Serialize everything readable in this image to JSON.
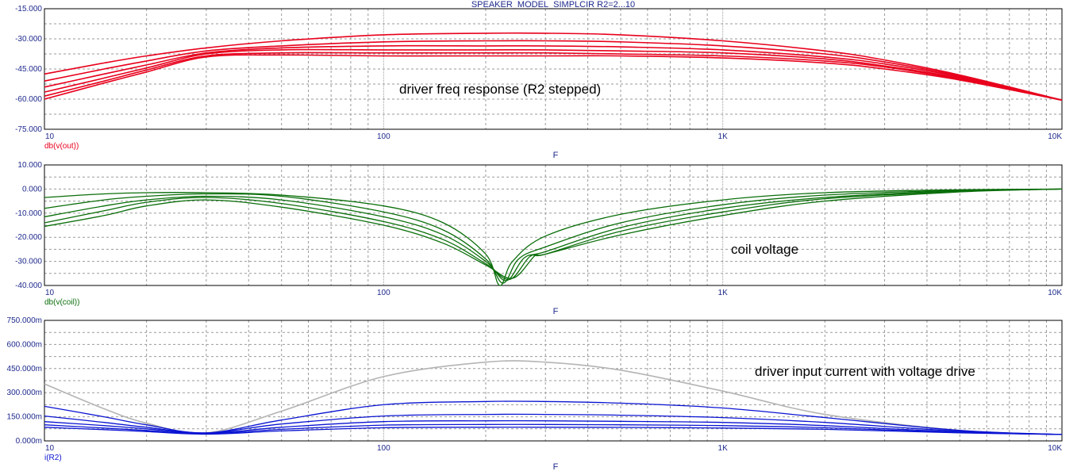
{
  "title": "SPEAKER_MODEL_SIMPLCIR R2=2...10",
  "colors": {
    "frame": "#000000",
    "grid": "#9a9a9a",
    "tick_text": "#1e2a8c",
    "red": "#e8001c",
    "green": "#0a6e0a",
    "blue": "#0a14d2",
    "gray": "#b4b4b4"
  },
  "chart_data": [
    {
      "type": "line",
      "xscale": "log",
      "xlim": [
        10,
        10000
      ],
      "ylim": [
        -75,
        -15
      ],
      "xlabel": "F",
      "xtick_labels": [
        "10",
        "100",
        "1K",
        "10K"
      ],
      "ytick_labels": [
        "-15.000",
        "-30.000",
        "-45.000",
        "-60.000",
        "-75.000"
      ],
      "trace_label": "db(v(out))",
      "annotation": "driver freq response (R2 stepped)",
      "series_color": "red",
      "series": [
        {
          "x": [
            10,
            15,
            20,
            30,
            50,
            100,
            200,
            300,
            500,
            1000,
            2000,
            3000,
            5000,
            10000
          ],
          "y": [
            -47.5,
            -42,
            -38.5,
            -34.5,
            -31,
            -28,
            -27.2,
            -27.2,
            -28,
            -31,
            -36,
            -40.5,
            -48,
            -60.5
          ]
        },
        {
          "x": [
            10,
            15,
            20,
            30,
            50,
            100,
            200,
            300,
            500,
            1000,
            2000,
            3000,
            5000,
            10000
          ],
          "y": [
            -51,
            -45,
            -41,
            -36,
            -33.5,
            -31.5,
            -31,
            -31,
            -31.5,
            -33.5,
            -37.5,
            -41.5,
            -48.5,
            -60.5
          ]
        },
        {
          "x": [
            10,
            15,
            20,
            30,
            50,
            100,
            200,
            300,
            500,
            1000,
            2000,
            3000,
            5000,
            10000
          ],
          "y": [
            -54,
            -47.5,
            -43,
            -37,
            -34.5,
            -33.5,
            -33.5,
            -33.5,
            -34,
            -35.5,
            -39,
            -42.5,
            -49,
            -60.5
          ]
        },
        {
          "x": [
            10,
            15,
            20,
            30,
            50,
            100,
            200,
            300,
            500,
            1000,
            2000,
            3000,
            5000,
            10000
          ],
          "y": [
            -56.5,
            -49.5,
            -44.5,
            -37.5,
            -35.5,
            -35.5,
            -35.5,
            -35.5,
            -36,
            -37,
            -40,
            -43.5,
            -49.5,
            -60.5
          ]
        },
        {
          "x": [
            10,
            15,
            20,
            30,
            50,
            100,
            200,
            300,
            500,
            1000,
            2000,
            3000,
            5000,
            10000
          ],
          "y": [
            -58.5,
            -51,
            -45.5,
            -38.5,
            -37,
            -37,
            -37,
            -37,
            -37.5,
            -38.5,
            -41,
            -44,
            -50,
            -60.5
          ]
        },
        {
          "x": [
            10,
            15,
            20,
            30,
            50,
            100,
            200,
            300,
            500,
            1000,
            2000,
            3000,
            5000,
            10000
          ],
          "y": [
            -60,
            -52,
            -46.5,
            -39,
            -38,
            -38.5,
            -38.5,
            -38.5,
            -38.5,
            -39.5,
            -42,
            -45,
            -50.5,
            -60.5
          ]
        }
      ]
    },
    {
      "type": "line",
      "xscale": "log",
      "xlim": [
        10,
        10000
      ],
      "ylim": [
        -40,
        10
      ],
      "xlabel": "F",
      "xtick_labels": [
        "10",
        "100",
        "1K",
        "10K"
      ],
      "ytick_labels": [
        "10.000",
        "0.000",
        "-10.000",
        "-20.000",
        "-30.000",
        "-40.000"
      ],
      "trace_label": "db(v(coil))",
      "annotation": "coil voltage",
      "series_color": "green",
      "series": [
        {
          "x": [
            10,
            15,
            20,
            30,
            50,
            100,
            150,
            200,
            220,
            240,
            300,
            500,
            1000,
            2000,
            5000,
            10000
          ],
          "y": [
            -3.5,
            -2,
            -1.5,
            -1.5,
            -2.5,
            -7,
            -14,
            -27,
            -40,
            -30,
            -19.5,
            -10.5,
            -4.5,
            -1.5,
            -0.3,
            0
          ]
        },
        {
          "x": [
            10,
            15,
            20,
            30,
            50,
            100,
            150,
            200,
            225,
            250,
            300,
            500,
            1000,
            2000,
            5000,
            10000
          ],
          "y": [
            -8,
            -4.5,
            -3,
            -2,
            -3,
            -9.5,
            -17,
            -29,
            -39,
            -29,
            -24,
            -14,
            -6.5,
            -2.5,
            -0.5,
            0
          ]
        },
        {
          "x": [
            10,
            15,
            20,
            30,
            50,
            100,
            150,
            200,
            230,
            260,
            300,
            500,
            1000,
            2000,
            5000,
            10000
          ],
          "y": [
            -11.5,
            -7,
            -4.5,
            -3,
            -4.5,
            -11.5,
            -19,
            -30,
            -38,
            -28.5,
            -26,
            -16,
            -8,
            -3.5,
            -0.7,
            0
          ]
        },
        {
          "x": [
            10,
            15,
            20,
            30,
            50,
            100,
            150,
            200,
            235,
            270,
            300,
            500,
            1000,
            2000,
            5000,
            10000
          ],
          "y": [
            -14,
            -9,
            -5.5,
            -3.5,
            -6,
            -13.5,
            -21,
            -31,
            -37.5,
            -28,
            -27,
            -17.5,
            -9.5,
            -4,
            -1,
            0
          ]
        },
        {
          "x": [
            10,
            15,
            20,
            30,
            50,
            100,
            150,
            200,
            240,
            280,
            300,
            500,
            1000,
            2000,
            5000,
            10000
          ],
          "y": [
            -15.5,
            -11,
            -7,
            -4.5,
            -7.5,
            -15,
            -22.5,
            -31.5,
            -37,
            -27.5,
            -27,
            -19,
            -11,
            -5,
            -1.2,
            0
          ]
        }
      ]
    },
    {
      "type": "line",
      "xscale": "log",
      "xlim": [
        10,
        10000
      ],
      "ylim": [
        0,
        750
      ],
      "xlabel": "F",
      "xtick_labels": [
        "10",
        "100",
        "1K",
        "10K"
      ],
      "ytick_labels": [
        "750.000m",
        "600.000m",
        "450.000m",
        "300.000m",
        "150.000m",
        "0.000m"
      ],
      "trace_label": "i(R2)",
      "annotation": "driver input current with voltage drive",
      "series": [
        {
          "color": "gray",
          "x": [
            10,
            15,
            20,
            30,
            50,
            100,
            200,
            300,
            500,
            1000,
            2000,
            5000,
            10000
          ],
          "y": [
            355,
            200,
            110,
            50,
            185,
            400,
            490,
            490,
            440,
            310,
            165,
            65,
            40
          ]
        },
        {
          "color": "blue",
          "x": [
            10,
            15,
            20,
            30,
            50,
            100,
            200,
            300,
            500,
            1000,
            2000,
            5000,
            10000
          ],
          "y": [
            215,
            150,
            100,
            50,
            130,
            225,
            245,
            245,
            235,
            205,
            145,
            65,
            40
          ]
        },
        {
          "color": "blue",
          "x": [
            10,
            15,
            20,
            30,
            50,
            100,
            200,
            300,
            500,
            1000,
            2000,
            5000,
            10000
          ],
          "y": [
            155,
            115,
            85,
            50,
            105,
            155,
            165,
            165,
            160,
            145,
            115,
            60,
            40
          ]
        },
        {
          "color": "blue",
          "x": [
            10,
            15,
            20,
            30,
            50,
            100,
            200,
            300,
            500,
            1000,
            2000,
            5000,
            10000
          ],
          "y": [
            120,
            95,
            75,
            48,
            85,
            120,
            125,
            125,
            122,
            115,
            95,
            55,
            40
          ]
        },
        {
          "color": "blue",
          "x": [
            10,
            15,
            20,
            30,
            50,
            100,
            200,
            300,
            500,
            1000,
            2000,
            5000,
            10000
          ],
          "y": [
            100,
            80,
            65,
            45,
            72,
            98,
            102,
            102,
            100,
            95,
            82,
            52,
            40
          ]
        },
        {
          "color": "blue",
          "x": [
            10,
            15,
            20,
            30,
            50,
            100,
            200,
            300,
            500,
            1000,
            2000,
            5000,
            10000
          ],
          "y": [
            85,
            70,
            58,
            42,
            62,
            82,
            85,
            85,
            84,
            80,
            72,
            50,
            40
          ]
        }
      ]
    }
  ]
}
